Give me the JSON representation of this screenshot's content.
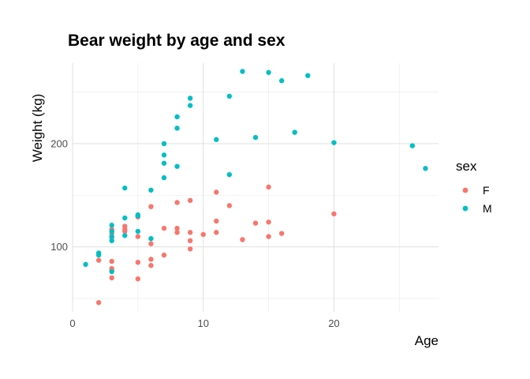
{
  "chart_data": {
    "type": "scatter",
    "title": "Bear weight by age and sex",
    "xlabel": "Age",
    "ylabel": "Weight (kg)",
    "xlim": [
      0,
      28
    ],
    "ylim": [
      37,
      278
    ],
    "x_ticks": [
      0,
      10,
      20
    ],
    "y_ticks": [
      100,
      200
    ],
    "grid": true,
    "legend": {
      "title": "sex",
      "placement": "right"
    },
    "series": [
      {
        "name": "F",
        "color": "#F8766D",
        "points": [
          [
            2,
            46
          ],
          [
            2,
            87
          ],
          [
            3,
            70
          ],
          [
            3,
            77
          ],
          [
            3,
            79
          ],
          [
            3,
            86
          ],
          [
            3,
            109
          ],
          [
            3,
            113
          ],
          [
            3,
            117
          ],
          [
            4,
            115
          ],
          [
            4,
            117
          ],
          [
            4,
            120
          ],
          [
            5,
            69
          ],
          [
            5,
            85
          ],
          [
            5,
            110
          ],
          [
            5,
            129
          ],
          [
            6,
            82
          ],
          [
            6,
            88
          ],
          [
            6,
            103
          ],
          [
            6,
            139
          ],
          [
            7,
            92
          ],
          [
            7,
            118
          ],
          [
            8,
            114
          ],
          [
            8,
            118
          ],
          [
            8,
            143
          ],
          [
            9,
            98
          ],
          [
            9,
            106
          ],
          [
            9,
            114
          ],
          [
            9,
            145
          ],
          [
            10,
            112
          ],
          [
            11,
            114
          ],
          [
            11,
            125
          ],
          [
            11,
            153
          ],
          [
            12,
            140
          ],
          [
            13,
            107
          ],
          [
            14,
            123
          ],
          [
            15,
            110
          ],
          [
            15,
            124
          ],
          [
            15,
            158
          ],
          [
            16,
            113
          ],
          [
            20,
            132
          ]
        ]
      },
      {
        "name": "M",
        "color": "#00BFC4",
        "points": [
          [
            1,
            83
          ],
          [
            2,
            92
          ],
          [
            2,
            94
          ],
          [
            3,
            76
          ],
          [
            3,
            106
          ],
          [
            3,
            110
          ],
          [
            3,
            115
          ],
          [
            3,
            121
          ],
          [
            4,
            111
          ],
          [
            4,
            128
          ],
          [
            4,
            157
          ],
          [
            5,
            115
          ],
          [
            5,
            130
          ],
          [
            5,
            131
          ],
          [
            6,
            108
          ],
          [
            6,
            155
          ],
          [
            7,
            167
          ],
          [
            7,
            181
          ],
          [
            7,
            189
          ],
          [
            7,
            200
          ],
          [
            8,
            178
          ],
          [
            8,
            215
          ],
          [
            8,
            226
          ],
          [
            9,
            237
          ],
          [
            9,
            244
          ],
          [
            11,
            204
          ],
          [
            12,
            170
          ],
          [
            12,
            246
          ],
          [
            13,
            270
          ],
          [
            14,
            206
          ],
          [
            15,
            269
          ],
          [
            16,
            261
          ],
          [
            17,
            211
          ],
          [
            18,
            266
          ],
          [
            20,
            201
          ],
          [
            26,
            198
          ],
          [
            27,
            176
          ]
        ]
      }
    ]
  }
}
